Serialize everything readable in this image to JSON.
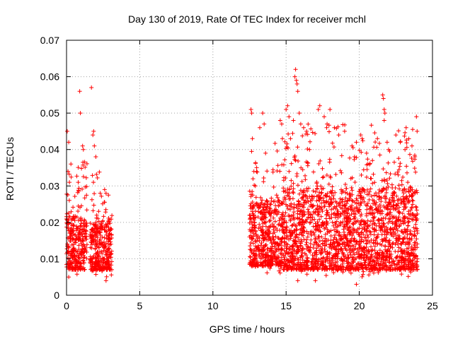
{
  "chart_data": {
    "type": "scatter",
    "title": "Day 130 of 2019, Rate Of TEC Index for receiver mchl",
    "xlabel": "GPS time / hours",
    "ylabel": "ROTI / TECUs",
    "xlim": [
      0,
      25
    ],
    "ylim": [
      0,
      0.07
    ],
    "xticks": [
      "0",
      "5",
      "10",
      "15",
      "20",
      "25"
    ],
    "yticks": [
      "0",
      "0.01",
      "0.02",
      "0.03",
      "0.04",
      "0.05",
      "0.06",
      "0.07"
    ],
    "grid": true,
    "marker": "plus",
    "color": "#ff0000",
    "series": [
      {
        "name": "ROTI",
        "segments": [
          {
            "x_start": 0.0,
            "x_end": 1.4,
            "typical_min": 0.005,
            "typical_max": 0.025
          },
          {
            "x_start": 1.6,
            "x_end": 3.1,
            "typical_min": 0.005,
            "typical_max": 0.022
          },
          {
            "x_start": 12.5,
            "x_end": 14.8,
            "typical_min": 0.006,
            "typical_max": 0.03
          },
          {
            "x_start": 14.8,
            "x_end": 24.0,
            "typical_min": 0.005,
            "typical_max": 0.035
          }
        ],
        "points": [
          [
            0.05,
            0.045
          ],
          [
            0.15,
            0.042
          ],
          [
            0.1,
            0.034
          ],
          [
            0.3,
            0.036
          ],
          [
            0.2,
            0.031
          ],
          [
            0.9,
            0.056
          ],
          [
            0.95,
            0.05
          ],
          [
            1.1,
            0.041
          ],
          [
            1.15,
            0.04
          ],
          [
            0.8,
            0.031
          ],
          [
            1.7,
            0.057
          ],
          [
            1.85,
            0.045
          ],
          [
            1.8,
            0.044
          ],
          [
            1.9,
            0.041
          ],
          [
            2.0,
            0.038
          ],
          [
            2.6,
            0.029
          ],
          [
            2.7,
            0.028
          ],
          [
            2.3,
            0.028
          ],
          [
            12.6,
            0.051
          ],
          [
            12.65,
            0.05
          ],
          [
            12.7,
            0.043
          ],
          [
            12.8,
            0.034
          ],
          [
            12.9,
            0.03
          ],
          [
            13.2,
            0.046
          ],
          [
            13.4,
            0.05
          ],
          [
            13.5,
            0.047
          ],
          [
            13.6,
            0.039
          ],
          [
            14.6,
            0.048
          ],
          [
            14.7,
            0.047
          ],
          [
            14.75,
            0.043
          ],
          [
            15.0,
            0.051
          ],
          [
            15.1,
            0.052
          ],
          [
            15.2,
            0.049
          ],
          [
            15.3,
            0.043
          ],
          [
            15.5,
            0.048
          ],
          [
            15.6,
            0.06
          ],
          [
            15.65,
            0.062
          ],
          [
            15.7,
            0.059
          ],
          [
            15.75,
            0.058
          ],
          [
            15.8,
            0.056
          ],
          [
            15.9,
            0.05
          ],
          [
            16.0,
            0.047
          ],
          [
            16.2,
            0.046
          ],
          [
            16.4,
            0.045
          ],
          [
            16.6,
            0.04
          ],
          [
            17.2,
            0.051
          ],
          [
            17.3,
            0.052
          ],
          [
            17.6,
            0.049
          ],
          [
            17.8,
            0.047
          ],
          [
            18.0,
            0.051
          ],
          [
            18.3,
            0.046
          ],
          [
            18.6,
            0.044
          ],
          [
            19.0,
            0.045
          ],
          [
            19.5,
            0.041
          ],
          [
            19.8,
            0.042
          ],
          [
            20.1,
            0.044
          ],
          [
            20.2,
            0.043
          ],
          [
            20.5,
            0.039
          ],
          [
            20.9,
            0.037
          ],
          [
            21.6,
            0.055
          ],
          [
            21.65,
            0.054
          ],
          [
            21.7,
            0.051
          ],
          [
            21.75,
            0.05
          ],
          [
            21.7,
            0.048
          ],
          [
            21.9,
            0.042
          ],
          [
            22.0,
            0.04
          ],
          [
            22.5,
            0.044
          ],
          [
            22.8,
            0.042
          ],
          [
            23.2,
            0.046
          ],
          [
            23.6,
            0.041
          ],
          [
            23.9,
            0.049
          ],
          [
            23.95,
            0.045
          ],
          [
            23.8,
            0.038
          ],
          [
            19.8,
            0.003
          ],
          [
            17.0,
            0.004
          ],
          [
            15.8,
            0.004
          ],
          [
            2.7,
            0.004
          ],
          [
            0.15,
            0.005
          ]
        ]
      }
    ]
  }
}
